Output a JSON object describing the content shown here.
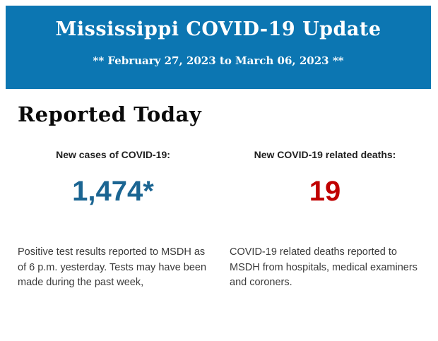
{
  "banner": {
    "title": "Mississippi COVID-19 Update",
    "subtitle": "** February 27, 2023 to March 06, 2023 **",
    "background_color": "#0c76b2",
    "text_color": "#ffffff"
  },
  "section": {
    "heading": "Reported Today"
  },
  "stats": {
    "cases": {
      "label": "New cases of COVID-19:",
      "value": "1,474*",
      "value_color": "#1b6592",
      "description": "Positive test results reported to MSDH as of 6 p.m. yesterday. Tests may have been made during the past week,"
    },
    "deaths": {
      "label": "New COVID-19 related deaths:",
      "value": "19",
      "value_color": "#c00000",
      "description": "COVID-19 related deaths reported to MSDH from hospitals, medical examiners and coroners."
    }
  }
}
